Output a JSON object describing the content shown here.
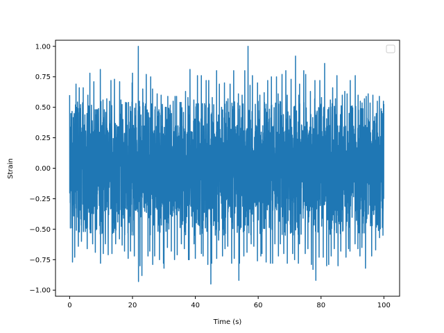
{
  "chart_data": {
    "type": "line",
    "title": "",
    "xlabel": "Time (s)",
    "ylabel": "Strain",
    "xlim": [
      -4.5,
      105
    ],
    "ylim": [
      -1.05,
      1.05
    ],
    "x_ticks": [
      0,
      20,
      40,
      60,
      80,
      100
    ],
    "x_tick_labels": [
      "0",
      "20",
      "40",
      "60",
      "80",
      "100"
    ],
    "y_ticks": [
      -1.0,
      -0.75,
      -0.5,
      -0.25,
      0.0,
      0.25,
      0.5,
      0.75,
      1.0
    ],
    "y_tick_labels": [
      "−1.00",
      "−0.75",
      "−0.50",
      "−0.25",
      "0.00",
      "0.25",
      "0.50",
      "0.75",
      "1.00"
    ],
    "grid": false,
    "legend": {
      "position": "top-right",
      "entries": []
    },
    "series_color": "#1f77b4",
    "series": [
      {
        "x_start": 0,
        "x_end": 100,
        "envelope_max": [
          0.6,
          0.52,
          0.69,
          0.66,
          0.66,
          0.6,
          0.78,
          0.71,
          0.48,
          0.81,
          0.56,
          0.57,
          0.55,
          0.72,
          0.73,
          0.71,
          0.56,
          0.54,
          0.54,
          0.7,
          0.78,
          1.0,
          0.55,
          0.65,
          0.77,
          0.75,
          0.65,
          0.61,
          0.48,
          0.6,
          0.5,
          0.59,
          0.55,
          0.59,
          0.59,
          0.54,
          0.63,
          0.58,
          0.81,
          0.56,
          0.76,
          0.76,
          0.53,
          0.72,
          0.72,
          0.58,
          0.8,
          0.69,
          0.5,
          0.7,
          0.57,
          0.69,
          0.8,
          0.61,
          0.6,
          0.8,
          1.0,
          0.68,
          0.76,
          0.7,
          0.6,
          0.62,
          0.54,
          0.72,
          0.75,
          0.75,
          0.61,
          0.77,
          0.8,
          0.6,
          0.73,
          0.92,
          0.6,
          0.69,
          0.8,
          0.77,
          0.63,
          0.57,
          0.72,
          0.72,
          0.58,
          0.86,
          0.56,
          0.66,
          0.57,
          0.76,
          0.6,
          0.63,
          0.61,
          0.72,
          0.76,
          0.6,
          0.55,
          0.57,
          0.59,
          0.61,
          0.6,
          0.55,
          0.59,
          0.55
        ],
        "envelope_min": [
          -0.77,
          -0.73,
          -0.64,
          -0.6,
          -0.52,
          -0.66,
          -0.53,
          -0.62,
          -0.69,
          -0.78,
          -0.7,
          -0.62,
          -0.71,
          -0.7,
          -0.62,
          -0.58,
          -0.63,
          -0.68,
          -0.74,
          -0.68,
          -0.72,
          -0.93,
          -0.8,
          -0.88,
          -0.72,
          -0.68,
          -0.79,
          -0.72,
          -0.75,
          -0.78,
          -0.82,
          -0.65,
          -0.68,
          -0.75,
          -0.71,
          -0.62,
          -0.66,
          -0.75,
          -0.75,
          -0.62,
          -0.74,
          -0.7,
          -0.72,
          -0.79,
          -0.95,
          -0.78,
          -0.74,
          -0.59,
          -0.72,
          -0.66,
          -0.64,
          -0.78,
          -0.74,
          -0.92,
          -0.78,
          -0.72,
          -0.69,
          -0.62,
          -0.64,
          -0.76,
          -0.72,
          -0.7,
          -0.77,
          -0.78,
          -0.78,
          -0.62,
          -0.72,
          -0.62,
          -0.7,
          -0.78,
          -0.7,
          -0.75,
          -0.78,
          -0.62,
          -0.7,
          -0.66,
          -0.79,
          -0.83,
          -0.92,
          -0.73,
          -0.73,
          -0.8,
          -0.79,
          -0.72,
          -0.66,
          -0.8,
          -0.68,
          -0.73,
          -0.66,
          -0.68,
          -0.62,
          -0.66,
          -0.72,
          -0.65,
          -0.82,
          -0.6,
          -0.72,
          -0.67,
          -0.57,
          -0.55
        ]
      }
    ]
  }
}
